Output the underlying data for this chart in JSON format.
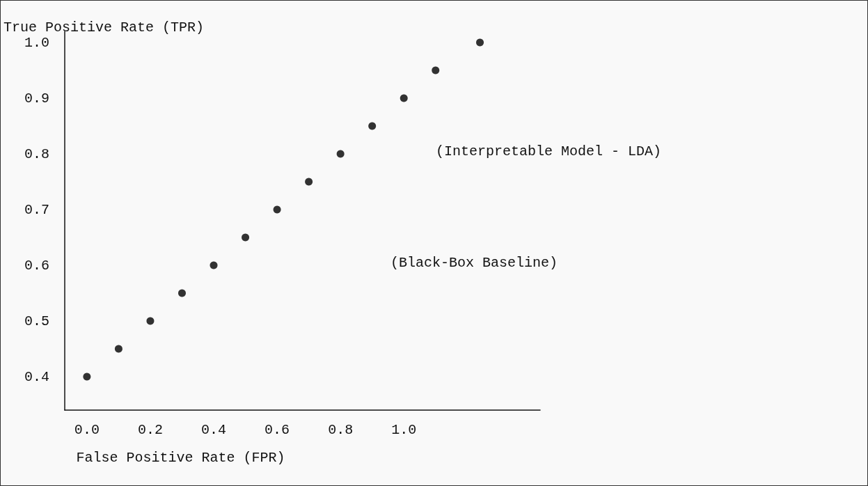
{
  "chart_data": {
    "type": "scatter",
    "xlabel": "False Positive Rate (FPR)",
    "ylabel": "True Positive Rate (TPR)",
    "x": [
      0,
      0.1,
      0.2,
      0.3,
      0.4,
      0.5,
      0.6,
      0.7,
      0.8,
      0.9,
      1.0,
      1.1,
      1.24
    ],
    "series": [
      {
        "color": "#000000",
        "values": [
          0.4,
          0.45,
          0.5,
          0.55,
          0.6,
          0.65,
          0.7,
          0.75,
          0.8,
          0.85,
          0.9,
          0.95,
          1.0
        ]
      }
    ],
    "xlim": [
      -0.07,
      1.43
    ],
    "ylim": [
      0.34,
      1.02
    ],
    "xticks": [
      {
        "value": 0,
        "label": "0.0"
      },
      0.2,
      0.4,
      0.6,
      0.8,
      {
        "value": 1,
        "label": "1.0"
      }
    ],
    "yticks": [
      0.4,
      0.5,
      0.6,
      0.7,
      0.8,
      0.9,
      {
        "value": 1,
        "label": "1.0"
      }
    ],
    "annotations": [
      "(Interpretable Model - LDA)",
      "(Black-Box Baseline)"
    ],
    "marker": "circle",
    "grid": false
  }
}
